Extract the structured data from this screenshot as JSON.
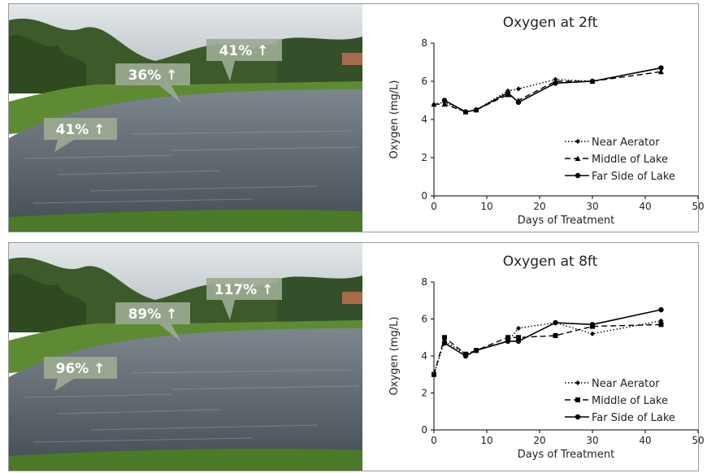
{
  "colors": {
    "callout_fill": "#9aaa92",
    "series_line": "#000000",
    "sky": "#c9cfd3",
    "water": "#5e6670",
    "grass": "#4e7a2c"
  },
  "panels": [
    {
      "callouts": [
        {
          "text": "41% ↑"
        },
        {
          "text": "36% ↑"
        },
        {
          "text": "41% ↑"
        }
      ]
    },
    {
      "callouts": [
        {
          "text": "117% ↑"
        },
        {
          "text": "89% ↑"
        },
        {
          "text": "96% ↑"
        }
      ]
    }
  ],
  "chart_data": [
    {
      "type": "line",
      "title": "Oxygen at 2ft",
      "xlabel": "Days of Treatment",
      "ylabel": "Oxygen (mg/L)",
      "xlim": [
        0,
        50
      ],
      "ylim": [
        0,
        8
      ],
      "xticks": [
        0,
        10,
        20,
        30,
        40,
        50
      ],
      "yticks": [
        0,
        2,
        4,
        6,
        8
      ],
      "grid": false,
      "legend_position": "bottom-right",
      "series": [
        {
          "name": "Near Aerator",
          "style": "dotted",
          "marker": "diamond",
          "x": [
            0,
            2,
            6,
            8,
            14,
            16,
            23,
            30,
            43
          ],
          "y": [
            4.8,
            4.9,
            4.4,
            4.5,
            5.5,
            5.6,
            6.1,
            6.0,
            6.7
          ]
        },
        {
          "name": "Middle of Lake",
          "style": "dashed",
          "marker": "triangle",
          "x": [
            0,
            2,
            6,
            8,
            14,
            16,
            23,
            30,
            43
          ],
          "y": [
            4.8,
            4.8,
            4.4,
            4.5,
            5.3,
            5.0,
            6.0,
            6.0,
            6.5
          ]
        },
        {
          "name": "Far Side of Lake",
          "style": "solid",
          "marker": "circle",
          "x": [
            2,
            6,
            8,
            14,
            16,
            23,
            30,
            43
          ],
          "y": [
            5.0,
            4.4,
            4.5,
            5.4,
            4.9,
            5.9,
            6.0,
            6.7
          ]
        }
      ]
    },
    {
      "type": "line",
      "title": "Oxygen at 8ft",
      "xlabel": "Days of Treatment",
      "ylabel": "Oxygen (mg/L)",
      "xlim": [
        0,
        50
      ],
      "ylim": [
        0,
        8
      ],
      "xticks": [
        0,
        10,
        20,
        30,
        40,
        50
      ],
      "yticks": [
        0,
        2,
        4,
        6,
        8
      ],
      "grid": false,
      "legend_position": "bottom-right",
      "series": [
        {
          "name": "Near Aerator",
          "style": "dotted",
          "marker": "diamond",
          "x": [
            0,
            2,
            6,
            8,
            14,
            16,
            23,
            30,
            43
          ],
          "y": [
            3.0,
            4.8,
            4.1,
            4.3,
            4.8,
            5.5,
            5.8,
            5.2,
            5.9
          ]
        },
        {
          "name": "Middle of Lake",
          "style": "dashed",
          "marker": "square",
          "x": [
            0,
            2,
            6,
            8,
            14,
            16,
            23,
            30,
            43
          ],
          "y": [
            3.0,
            5.0,
            4.1,
            4.3,
            5.0,
            5.0,
            5.1,
            5.6,
            5.7
          ]
        },
        {
          "name": "Far Side of Lake",
          "style": "solid",
          "marker": "circle",
          "x": [
            2,
            6,
            8,
            14,
            16,
            23,
            30,
            43
          ],
          "y": [
            4.7,
            4.0,
            4.3,
            4.8,
            4.8,
            5.8,
            5.7,
            6.5
          ]
        }
      ]
    }
  ]
}
